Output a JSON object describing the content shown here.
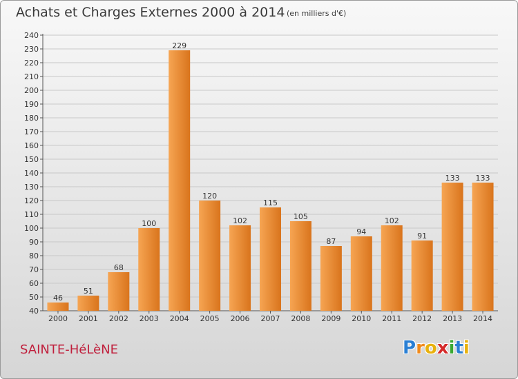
{
  "header": {
    "title": "Achats et Charges Externes 2000 à 2014",
    "subtitle": "(en milliers d'€)"
  },
  "footer": {
    "place": "SAINTE-HéLèNE",
    "logo_letters": [
      "P",
      "r",
      "o",
      "x",
      "i",
      "t",
      "i"
    ],
    "logo_colors": [
      "#2a7fd4",
      "#f08a1c",
      "#e8b10e",
      "#d42a2a",
      "#3aa832",
      "#2a7fd4",
      "#e8b10e"
    ]
  },
  "colors": {
    "bar_light": "#f6a553",
    "bar_dark": "#d9741c",
    "grid": "#c8c8c8"
  },
  "chart_data": {
    "type": "bar",
    "categories": [
      "2000",
      "2001",
      "2002",
      "2003",
      "2004",
      "2005",
      "2006",
      "2007",
      "2008",
      "2009",
      "2010",
      "2011",
      "2012",
      "2013",
      "2014"
    ],
    "values": [
      46,
      51,
      68,
      100,
      229,
      120,
      102,
      115,
      105,
      87,
      94,
      102,
      91,
      133,
      133
    ],
    "value_labels": [
      "46",
      "51",
      "68",
      "100",
      "229",
      "120",
      "102",
      "115",
      "105",
      "87",
      "94",
      "102",
      "91",
      "133",
      "133"
    ],
    "yticks": [
      "40",
      "50",
      "60",
      "70",
      "80",
      "90",
      "100",
      "110",
      "120",
      "130",
      "140",
      "150",
      "160",
      "170",
      "180",
      "190",
      "200",
      "210",
      "220",
      "230",
      "240"
    ],
    "ylim": [
      40,
      240
    ],
    "grid": true
  }
}
